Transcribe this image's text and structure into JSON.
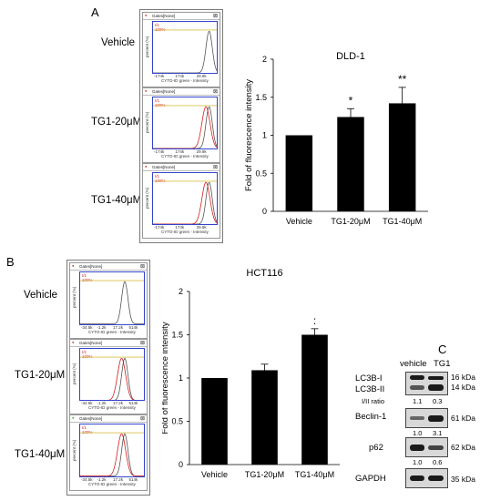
{
  "panels": {
    "a": "A",
    "b": "B",
    "c": "C"
  },
  "flow": {
    "gate_header": "Gates[None]",
    "gate_id": "I/1",
    "gate_pct": "100%",
    "y_axis": "percent (%)",
    "x_axis": "CYTO-ID green - Intensity",
    "a_ticks": [
      "-174k",
      "174k",
      "29.9k"
    ],
    "b_ticks": [
      "-34.5k",
      "-1.2k",
      "17.2k",
      "514k"
    ],
    "conditions": [
      "Vehicle",
      "TG1-20μM",
      "TG1-40μM"
    ],
    "colors": {
      "vehicle": "#555555",
      "tg1": "#d42020",
      "gate": "#d9c04a",
      "frame": "#3344cc"
    }
  },
  "chart_data": [
    {
      "type": "bar",
      "title": "DLD-1",
      "categories": [
        "Vehicle",
        "TG1-20μM",
        "TG1-40μM"
      ],
      "values": [
        1.0,
        1.24,
        1.42
      ],
      "errors": [
        0,
        0.11,
        0.21
      ],
      "significance": [
        "",
        "*",
        "**"
      ],
      "ylabel": "Fold of fluorescence intensity",
      "xlabel": "",
      "ylim": [
        0,
        2
      ],
      "yticks": [
        "0",
        "0.5",
        "1",
        "1.5",
        "2"
      ],
      "bar_color": "#000000",
      "grid": false
    },
    {
      "type": "bar",
      "title": "HCT116",
      "categories": [
        "Vehicle",
        "TG1-20μM",
        "TG1-40μM"
      ],
      "values": [
        1.0,
        1.09,
        1.5
      ],
      "errors": [
        0,
        0.07,
        0.07
      ],
      "significance": [
        "",
        "",
        ":"
      ],
      "ylabel": "Fold of fluorescence intensity",
      "xlabel": "",
      "ylim": [
        0,
        2
      ],
      "yticks": [
        "0",
        "0.5",
        "1",
        "1.5",
        "2"
      ],
      "bar_color": "#000000",
      "grid": false
    }
  ],
  "western": {
    "lanes": [
      "vehicle",
      "TG1"
    ],
    "blots": [
      {
        "labels": [
          "LC3B-I",
          "LC3B-II"
        ],
        "kda": [
          "16 kDa",
          "14 kDa"
        ],
        "ratio_label": "I/II ratio",
        "values": [
          "1.1",
          "0.3"
        ]
      },
      {
        "labels": [
          "Beclin-1"
        ],
        "kda": [
          "61 kDa"
        ],
        "values": [
          "1.0",
          "3.1"
        ]
      },
      {
        "labels": [
          "p62"
        ],
        "kda": [
          "62 kDa"
        ],
        "values": [
          "1.0",
          "0.6"
        ]
      },
      {
        "labels": [
          "GAPDH"
        ],
        "kda": [
          "35 kDa"
        ],
        "values": []
      }
    ]
  }
}
